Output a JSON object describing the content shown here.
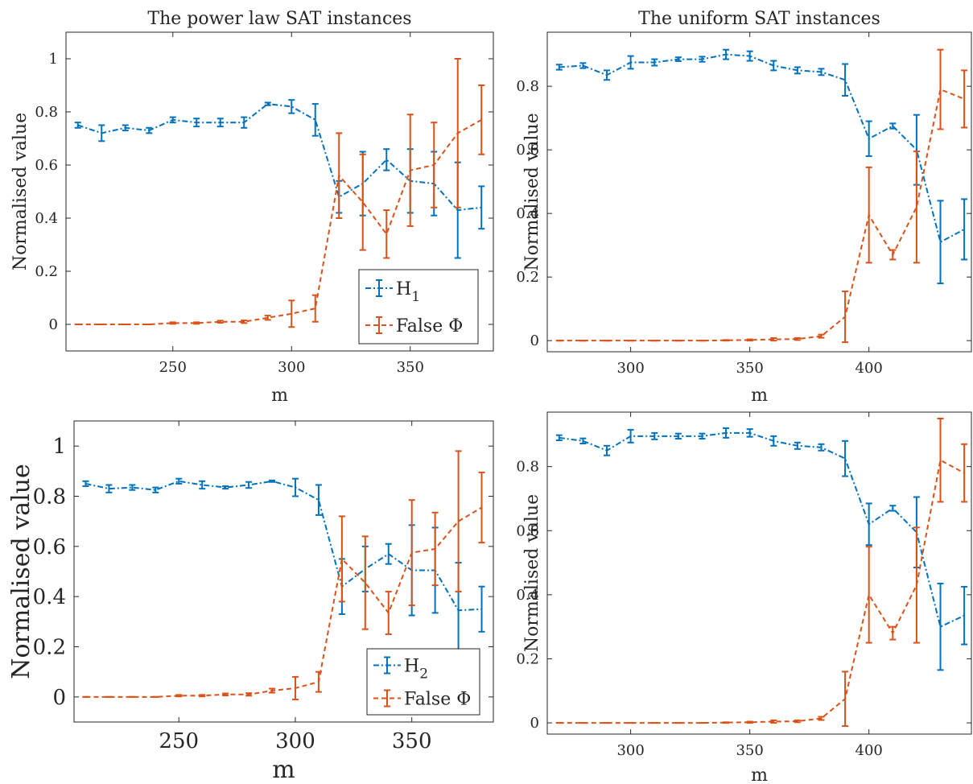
{
  "colors": {
    "H": "#0072BD",
    "False": "#D95319",
    "axis": "#262626"
  },
  "chart_data": [
    {
      "type": "line",
      "title": "The power law SAT instances",
      "xlabel": "m",
      "ylabel": "Normalised value",
      "xlim": [
        205,
        385
      ],
      "ylim": [
        -0.1,
        1.1
      ],
      "xticks": [
        250,
        300,
        350
      ],
      "yticks": [
        0,
        0.2,
        0.4,
        0.6,
        0.8,
        1
      ],
      "ytick_labels": [
        "0",
        "0.2",
        "0.4",
        "0.6",
        "0.8",
        "1"
      ],
      "grid": false,
      "legend": "bottom-right",
      "x": [
        210,
        220,
        230,
        240,
        250,
        260,
        270,
        280,
        290,
        300,
        310,
        320,
        330,
        340,
        350,
        360,
        370,
        380
      ],
      "series": [
        {
          "name": "H",
          "sub": "1",
          "color": "#0072BD",
          "style": "dash-dot",
          "values": [
            0.75,
            0.72,
            0.74,
            0.73,
            0.77,
            0.76,
            0.76,
            0.76,
            0.83,
            0.82,
            0.77,
            0.48,
            0.53,
            0.62,
            0.54,
            0.53,
            0.43,
            0.44
          ],
          "error": [
            0.01,
            0.03,
            0.01,
            0.01,
            0.01,
            0.015,
            0.015,
            0.02,
            0.005,
            0.025,
            0.06,
            0.06,
            0.12,
            0.04,
            0.12,
            0.12,
            0.18,
            0.08
          ]
        },
        {
          "name": "False Φ",
          "color": "#D95319",
          "style": "dashed",
          "values": [
            0.0,
            0.0,
            0.0,
            0.0,
            0.005,
            0.005,
            0.01,
            0.01,
            0.025,
            0.04,
            0.06,
            0.56,
            0.46,
            0.34,
            0.58,
            0.6,
            0.72,
            0.77
          ],
          "error": [
            0.0,
            0.0,
            0.0,
            0.0,
            0.003,
            0.003,
            0.004,
            0.005,
            0.008,
            0.05,
            0.05,
            0.16,
            0.18,
            0.09,
            0.21,
            0.16,
            0.28,
            0.13
          ]
        }
      ]
    },
    {
      "type": "line",
      "title": "The uniform SAT instances",
      "xlabel": "m",
      "ylabel": "Normalised value",
      "xlim": [
        265,
        443
      ],
      "ylim": [
        -0.035,
        0.97
      ],
      "xticks": [
        300,
        350,
        400
      ],
      "yticks": [
        0,
        0.2,
        0.4,
        0.6,
        0.8
      ],
      "ytick_labels": [
        "0",
        "0.2",
        "0.4",
        "0.6",
        "0.8"
      ],
      "grid": false,
      "x": [
        270,
        280,
        290,
        300,
        310,
        320,
        330,
        340,
        350,
        360,
        370,
        380,
        390,
        400,
        410,
        420,
        430,
        440
      ],
      "series": [
        {
          "color": "#0072BD",
          "style": "dash-dot",
          "values": [
            0.86,
            0.865,
            0.835,
            0.875,
            0.875,
            0.885,
            0.885,
            0.9,
            0.895,
            0.865,
            0.85,
            0.845,
            0.82,
            0.635,
            0.675,
            0.6,
            0.31,
            0.35
          ],
          "error": [
            0.008,
            0.008,
            0.015,
            0.02,
            0.01,
            0.006,
            0.008,
            0.015,
            0.015,
            0.015,
            0.01,
            0.01,
            0.05,
            0.055,
            0.008,
            0.11,
            0.13,
            0.095
          ]
        },
        {
          "color": "#D95319",
          "style": "dashed",
          "values": [
            0.0,
            0.0,
            0.0,
            0.0,
            0.0,
            0.0,
            0.0,
            0.001,
            0.002,
            0.004,
            0.005,
            0.014,
            0.075,
            0.395,
            0.27,
            0.42,
            0.79,
            0.76
          ],
          "error": [
            0.0,
            0.0,
            0.0,
            0.0,
            0.0,
            0.0,
            0.0,
            0.001,
            0.002,
            0.004,
            0.003,
            0.005,
            0.08,
            0.15,
            0.015,
            0.175,
            0.125,
            0.09
          ]
        }
      ]
    },
    {
      "type": "line",
      "xlabel": "m",
      "ylabel": "Normalised value",
      "xlim": [
        205,
        385
      ],
      "ylim": [
        -0.1,
        1.1
      ],
      "xticks": [
        250,
        300,
        350
      ],
      "yticks": [
        0,
        0.2,
        0.4,
        0.6,
        0.8,
        1
      ],
      "ytick_labels": [
        "0",
        "0.2",
        "0.4",
        "0.6",
        "0.8",
        "1"
      ],
      "grid": false,
      "legend": "bottom-right",
      "x": [
        210,
        220,
        230,
        240,
        250,
        260,
        270,
        280,
        290,
        300,
        310,
        320,
        330,
        340,
        350,
        360,
        370,
        380
      ],
      "series": [
        {
          "name": "H",
          "sub": "2",
          "color": "#0072BD",
          "style": "dash-dot",
          "values": [
            0.85,
            0.83,
            0.835,
            0.825,
            0.86,
            0.845,
            0.835,
            0.845,
            0.86,
            0.835,
            0.785,
            0.44,
            0.51,
            0.57,
            0.505,
            0.505,
            0.345,
            0.35
          ],
          "error": [
            0.01,
            0.015,
            0.01,
            0.01,
            0.01,
            0.015,
            0.005,
            0.012,
            0.003,
            0.035,
            0.06,
            0.11,
            0.09,
            0.04,
            0.18,
            0.17,
            0.19,
            0.09
          ]
        },
        {
          "name": "False Φ",
          "color": "#D95319",
          "style": "dashed",
          "values": [
            0.0,
            0.0,
            0.0,
            0.0,
            0.005,
            0.005,
            0.01,
            0.01,
            0.025,
            0.035,
            0.06,
            0.55,
            0.455,
            0.335,
            0.575,
            0.59,
            0.7,
            0.755
          ],
          "error": [
            0.0,
            0.0,
            0.0,
            0.0,
            0.003,
            0.003,
            0.004,
            0.005,
            0.008,
            0.045,
            0.04,
            0.17,
            0.185,
            0.085,
            0.21,
            0.145,
            0.28,
            0.14
          ]
        }
      ]
    },
    {
      "type": "line",
      "xlabel": "m",
      "ylabel": "Normalised value",
      "xlim": [
        265,
        443
      ],
      "ylim": [
        -0.035,
        0.97
      ],
      "xticks": [
        300,
        350,
        400
      ],
      "yticks": [
        0,
        0.2,
        0.4,
        0.6,
        0.8
      ],
      "ytick_labels": [
        "0",
        "0.2",
        "0.4",
        "0.6",
        "0.8"
      ],
      "grid": false,
      "x": [
        270,
        280,
        290,
        300,
        310,
        320,
        330,
        340,
        350,
        360,
        370,
        380,
        390,
        400,
        410,
        420,
        430,
        440
      ],
      "series": [
        {
          "color": "#0072BD",
          "style": "dash-dot",
          "values": [
            0.89,
            0.88,
            0.85,
            0.895,
            0.895,
            0.895,
            0.895,
            0.905,
            0.905,
            0.88,
            0.865,
            0.86,
            0.825,
            0.62,
            0.67,
            0.595,
            0.3,
            0.335
          ],
          "error": [
            0.008,
            0.008,
            0.015,
            0.02,
            0.01,
            0.008,
            0.008,
            0.015,
            0.012,
            0.015,
            0.01,
            0.01,
            0.055,
            0.065,
            0.008,
            0.11,
            0.135,
            0.09
          ]
        },
        {
          "color": "#D95319",
          "style": "dashed",
          "values": [
            0.0,
            0.0,
            0.0,
            0.0,
            0.0,
            0.0,
            0.0,
            0.001,
            0.002,
            0.004,
            0.005,
            0.014,
            0.075,
            0.4,
            0.28,
            0.43,
            0.82,
            0.78
          ],
          "error": [
            0.0,
            0.0,
            0.0,
            0.0,
            0.0,
            0.0,
            0.0,
            0.001,
            0.002,
            0.004,
            0.003,
            0.005,
            0.085,
            0.15,
            0.02,
            0.18,
            0.13,
            0.09
          ]
        }
      ]
    }
  ]
}
